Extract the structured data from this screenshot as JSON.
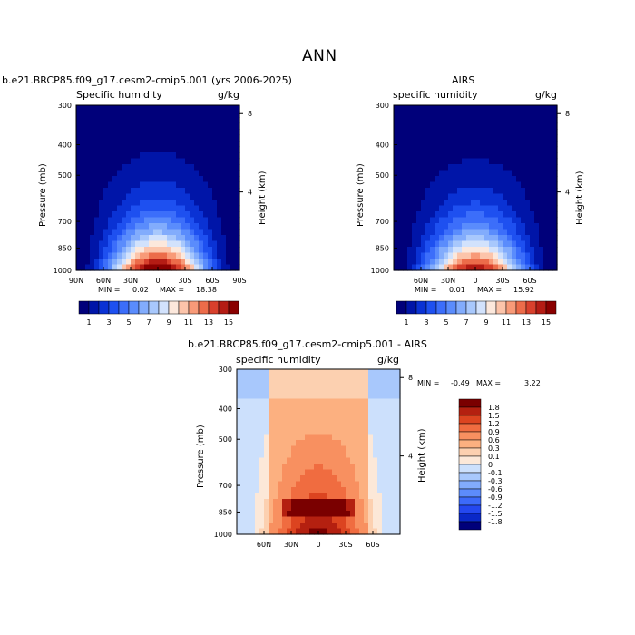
{
  "page_title": "ANN",
  "colors": {
    "model_scale": [
      "#00007a",
      "#0015a8",
      "#0a32d4",
      "#1e50f0",
      "#3c6efa",
      "#5a8cfc",
      "#82acfc",
      "#a8c8fc",
      "#d2e2fc",
      "#fce8dc",
      "#fcc4aa",
      "#f89a78",
      "#ec6c4a",
      "#d8402c",
      "#b41c14",
      "#8a0000"
    ],
    "diff_scale": [
      "#00007a",
      "#0a28c8",
      "#2448f0",
      "#3c6afa",
      "#5c8cfc",
      "#82acfc",
      "#a8c8fc",
      "#cce0fc",
      "#fce8d8",
      "#fcd0b0",
      "#fcb080",
      "#f89060",
      "#f06c40",
      "#dc4420",
      "#b42010",
      "#7a0000"
    ]
  },
  "chart_data": [
    {
      "type": "heatmap",
      "title": "b.e21.BRCP85.f09_g17.cesm2-cmip5.001 (yrs 2006-2025)",
      "variable": "Specific humidity",
      "units": "g/kg",
      "xlabel": "",
      "ylabel": "Pressure (mb)",
      "y2label": "Height (km)",
      "x_ticks": [
        "90N",
        "60N",
        "30N",
        "0",
        "30S",
        "60S",
        "90S"
      ],
      "x_range": [
        90,
        -90
      ],
      "y_ticks": [
        300,
        400,
        500,
        700,
        850,
        1000
      ],
      "y_range": [
        1000,
        300
      ],
      "y2_ticks": [
        8,
        4
      ],
      "min_label": "MIN =",
      "min_value": "0.02",
      "max_label": "MAX =",
      "max_value": "18.38",
      "colorbar_labels": [
        "1",
        "3",
        "5",
        "7",
        "9",
        "11",
        "13",
        "15"
      ]
    },
    {
      "type": "heatmap",
      "title": "AIRS",
      "variable": "specific humidity",
      "units": "g/kg",
      "xlabel": "",
      "ylabel": "Pressure (mb)",
      "y2label": "Height (km)",
      "x_ticks": [
        "60N",
        "30N",
        "0",
        "30S",
        "60S"
      ],
      "x_range": [
        90,
        -90
      ],
      "y_ticks": [
        300,
        400,
        500,
        700,
        850,
        1000
      ],
      "y_range": [
        1000,
        300
      ],
      "y2_ticks": [
        8,
        4
      ],
      "min_label": "MIN =",
      "min_value": "0.01",
      "max_label": "MAX =",
      "max_value": "15.92",
      "colorbar_labels": [
        "1",
        "3",
        "5",
        "7",
        "9",
        "11",
        "13",
        "15"
      ]
    },
    {
      "type": "heatmap",
      "title": "b.e21.BRCP85.f09_g17.cesm2-cmip5.001 - AIRS",
      "variable": "specific humidity",
      "units": "g/kg",
      "xlabel": "",
      "ylabel": "Pressure (mb)",
      "y2label": "Height (km)",
      "x_ticks": [
        "60N",
        "30N",
        "0",
        "30S",
        "60S"
      ],
      "x_range": [
        90,
        -90
      ],
      "y_ticks": [
        300,
        400,
        500,
        700,
        850,
        1000
      ],
      "y_range": [
        1000,
        300
      ],
      "y2_ticks": [
        8,
        4
      ],
      "min_label": "MIN =",
      "min_value": "-0.49",
      "max_label": "MAX =",
      "max_value": "3.22",
      "colorbar_labels": [
        "1.8",
        "1.5",
        "1.2",
        "0.9",
        "0.6",
        "0.3",
        "0.1",
        "0",
        "-0.1",
        "-0.3",
        "-0.6",
        "-0.9",
        "-1.2",
        "-1.5",
        "-1.8"
      ]
    }
  ]
}
